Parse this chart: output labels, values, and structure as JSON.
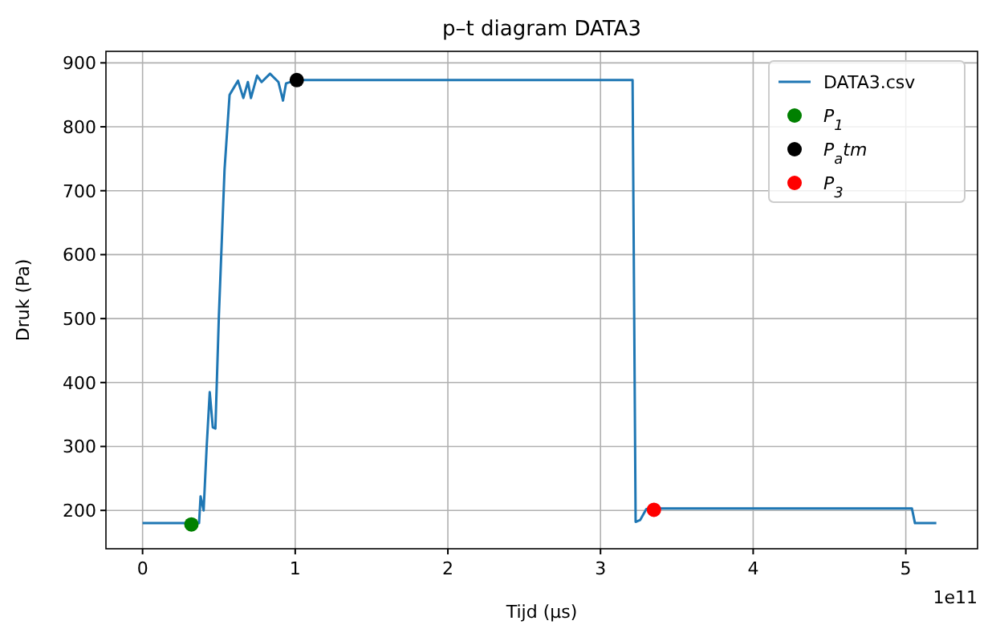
{
  "chart_data": {
    "type": "line",
    "title": "p–t diagram DATA3",
    "xlabel": "Tijd (μs)",
    "ylabel": "Druk (Pa)",
    "annotations": [
      "1e11"
    ],
    "xlim": [
      -0.24,
      5.47
    ],
    "ylim": [
      140,
      918
    ],
    "xticks": [
      0,
      1,
      2,
      3,
      4,
      5
    ],
    "yticks": [
      200,
      300,
      400,
      500,
      600,
      700,
      800,
      900
    ],
    "grid": true,
    "legend": "top right",
    "series": [
      {
        "name": "DATA3.csv",
        "color": "#1f77b4",
        "x": [
          0,
          0.3,
          0.37,
          0.38,
          0.4,
          0.42,
          0.44,
          0.46,
          0.477,
          0.5,
          0.537,
          0.57,
          0.6,
          0.625,
          0.66,
          0.69,
          0.71,
          0.75,
          0.78,
          0.835,
          0.89,
          0.92,
          0.94,
          1.01,
          2,
          3,
          3.21,
          3.23,
          3.26,
          3.3,
          3.4,
          4,
          5,
          5.04,
          5.06,
          5.2
        ],
        "values": [
          180,
          180,
          180,
          222,
          200,
          300,
          385,
          330,
          328,
          505,
          733,
          850,
          862,
          872,
          845,
          870,
          845,
          880,
          870,
          883,
          870,
          841,
          868,
          873,
          873,
          873,
          873,
          182,
          185,
          202,
          203,
          203,
          203,
          203,
          180,
          180
        ]
      },
      {
        "name": "P$_{1}$",
        "color": "#008000",
        "type": "scatter",
        "marker": "circle",
        "x": [
          0.32
        ],
        "values": [
          178
        ]
      },
      {
        "name": "P$_{a}$tm",
        "color": "#000000",
        "type": "scatter",
        "marker": "circle",
        "x": [
          1.01
        ],
        "values": [
          873
        ]
      },
      {
        "name": "P$_{3}$",
        "color": "#ff0000",
        "type": "scatter",
        "marker": "circle",
        "x": [
          3.35
        ],
        "values": [
          201
        ]
      }
    ]
  }
}
